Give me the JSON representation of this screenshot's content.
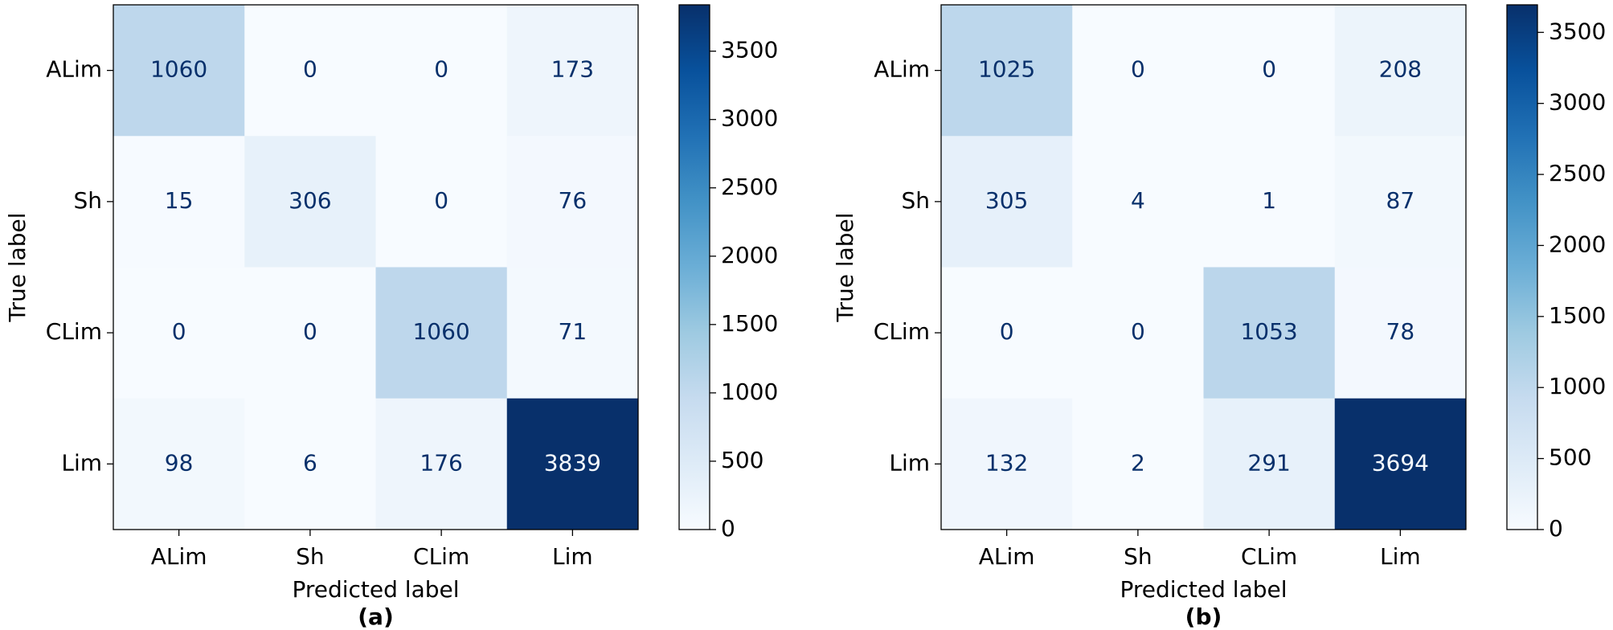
{
  "chart_data": [
    {
      "type": "heatmap",
      "colormap": "Blues",
      "x_categories": [
        "ALim",
        "Sh",
        "CLim",
        "Lim"
      ],
      "y_categories": [
        "ALim",
        "Sh",
        "CLim",
        "Lim"
      ],
      "values": [
        [
          1060,
          0,
          0,
          173
        ],
        [
          15,
          306,
          0,
          76
        ],
        [
          0,
          0,
          1060,
          71
        ],
        [
          98,
          6,
          176,
          3839
        ]
      ],
      "clim": [
        0,
        3839
      ],
      "cticks": [
        0,
        500,
        1000,
        1500,
        2000,
        2500,
        3000,
        3500
      ],
      "xlabel": "Predicted label",
      "ylabel": "True label",
      "caption": "(a)"
    },
    {
      "type": "heatmap",
      "colormap": "Blues",
      "x_categories": [
        "ALim",
        "Sh",
        "CLim",
        "Lim"
      ],
      "y_categories": [
        "ALim",
        "Sh",
        "CLim",
        "Lim"
      ],
      "values": [
        [
          1025,
          0,
          0,
          208
        ],
        [
          305,
          4,
          1,
          87
        ],
        [
          0,
          0,
          1053,
          78
        ],
        [
          132,
          2,
          291,
          3694
        ]
      ],
      "clim": [
        0,
        3694
      ],
      "cticks": [
        0,
        500,
        1000,
        1500,
        2000,
        2500,
        3000,
        3500
      ],
      "xlabel": "Predicted label",
      "ylabel": "True label",
      "caption": "(b)"
    }
  ]
}
